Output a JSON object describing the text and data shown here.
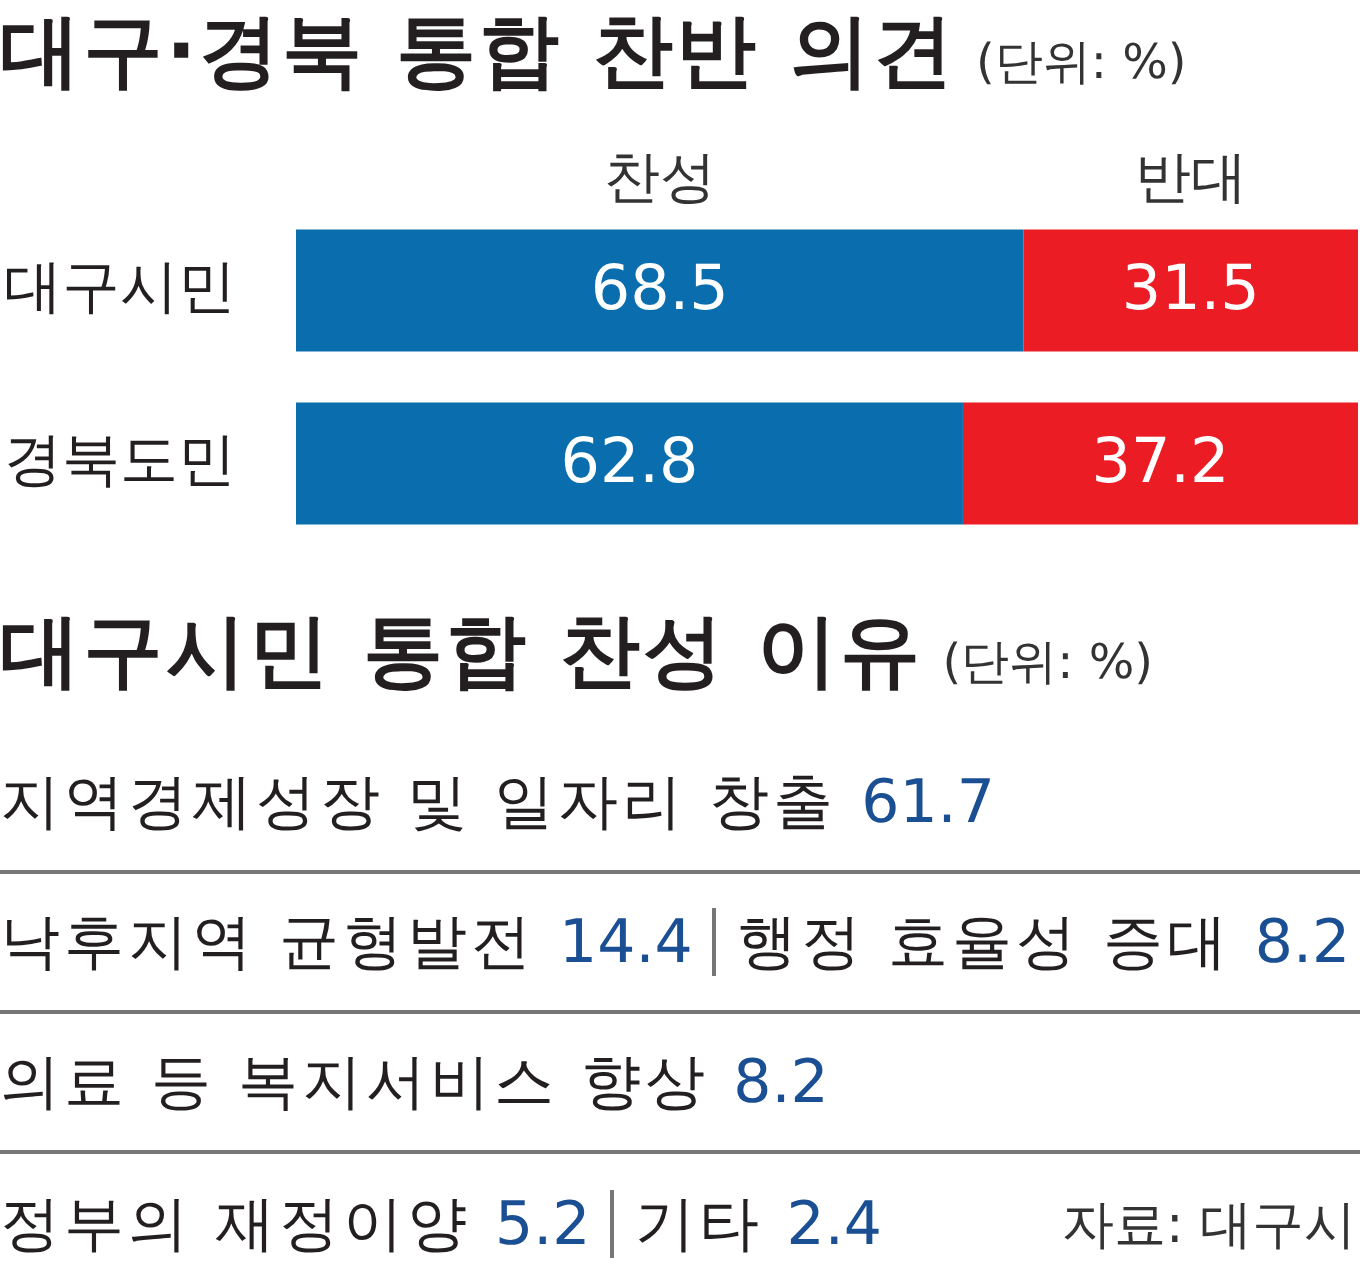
{
  "chart_data": [
    {
      "type": "bar",
      "orientation": "horizontal",
      "stacked": true,
      "title": "대구·경북 통합 찬반 의견",
      "subtitle": "(단위: %)",
      "categories": [
        "대구시민",
        "경북도민"
      ],
      "series": [
        {
          "name": "찬성",
          "color": "#0a6eae",
          "values": [
            68.5,
            62.8
          ]
        },
        {
          "name": "반대",
          "color": "#ec1c24",
          "values": [
            31.5,
            37.2
          ]
        }
      ],
      "data_labels": true,
      "legend": "top",
      "tick_labels": "y"
    },
    {
      "type": "other",
      "title": "대구시민 통합 찬성 이유",
      "subtitle": "(단위: %)",
      "categories": [
        "지역경제성장 및 일자리 창출",
        "낙후지역 균형발전",
        "행정 효율성 증대",
        "의료 등 복지서비스 향상",
        "정부의 재정이양",
        "기타"
      ],
      "values": [
        61.7,
        14.4,
        8.2,
        8.2,
        5.2,
        2.4
      ],
      "color": "#1b4f93",
      "data_labels": true,
      "annotations": [
        "자료: 대구시"
      ]
    }
  ]
}
